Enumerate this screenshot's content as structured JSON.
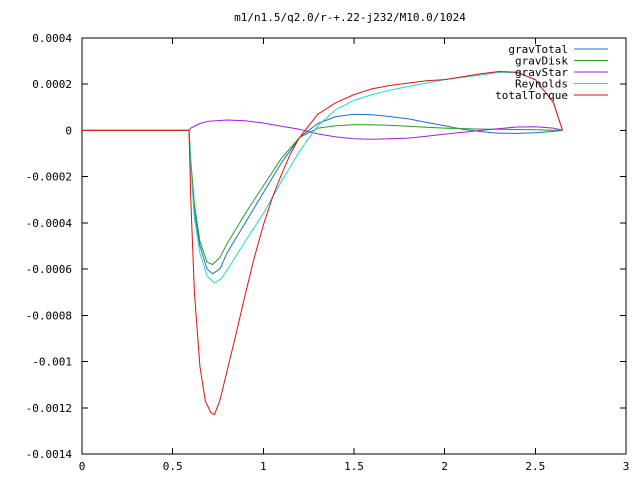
{
  "chart_data": {
    "type": "line",
    "title": "m1/n1.5/q2.0/r-+.22-j232/M10.0/1024",
    "xlabel": "",
    "ylabel": "",
    "xlim": [
      0,
      3
    ],
    "ylim": [
      -0.0014,
      0.0004
    ],
    "grid": false,
    "legend_position": "top-right",
    "x_ticks": [
      {
        "value": 0,
        "label": "0"
      },
      {
        "value": 0.5,
        "label": "0.5"
      },
      {
        "value": 1,
        "label": "1"
      },
      {
        "value": 1.5,
        "label": "1.5"
      },
      {
        "value": 2,
        "label": "2"
      },
      {
        "value": 2.5,
        "label": "2.5"
      },
      {
        "value": 3,
        "label": "3"
      }
    ],
    "y_ticks": [
      {
        "value": 0.0004,
        "label": "0.0004"
      },
      {
        "value": 0.0002,
        "label": "0.0002"
      },
      {
        "value": 0,
        "label": "0"
      },
      {
        "value": -0.0002,
        "label": "-0.0002"
      },
      {
        "value": -0.0004,
        "label": "-0.0004"
      },
      {
        "value": -0.0006,
        "label": "-0.0006"
      },
      {
        "value": -0.0008,
        "label": "-0.0008"
      },
      {
        "value": -0.001,
        "label": "-0.001"
      },
      {
        "value": -0.0012,
        "label": "-0.0012"
      },
      {
        "value": -0.0014,
        "label": "-0.0014"
      }
    ],
    "series": [
      {
        "name": "gravTotal",
        "color": "#1f6fd0",
        "points": [
          [
            0,
            0
          ],
          [
            0.59,
            0
          ],
          [
            0.6,
            -0.00015
          ],
          [
            0.62,
            -0.00035
          ],
          [
            0.65,
            -0.0005
          ],
          [
            0.69,
            -0.0006
          ],
          [
            0.72,
            -0.00062
          ],
          [
            0.76,
            -0.0006
          ],
          [
            0.8,
            -0.00053
          ],
          [
            0.9,
            -0.0004
          ],
          [
            1.0,
            -0.00027
          ],
          [
            1.1,
            -0.00014
          ],
          [
            1.2,
            -3e-05
          ],
          [
            1.3,
            3e-05
          ],
          [
            1.4,
            6e-05
          ],
          [
            1.5,
            7e-05
          ],
          [
            1.6,
            6.8e-05
          ],
          [
            1.7,
            6e-05
          ],
          [
            1.8,
            5e-05
          ],
          [
            1.9,
            3.5e-05
          ],
          [
            2.0,
            2e-05
          ],
          [
            2.1,
            5e-06
          ],
          [
            2.2,
            -5e-06
          ],
          [
            2.3,
            -1.2e-05
          ],
          [
            2.4,
            -1.3e-05
          ],
          [
            2.5,
            -1e-05
          ],
          [
            2.6,
            -4e-06
          ],
          [
            2.65,
            0
          ]
        ]
      },
      {
        "name": "gravDisk",
        "color": "#1ea01e",
        "points": [
          [
            0,
            0
          ],
          [
            0.59,
            0
          ],
          [
            0.6,
            -0.00013
          ],
          [
            0.62,
            -0.00032
          ],
          [
            0.65,
            -0.00048
          ],
          [
            0.69,
            -0.00057
          ],
          [
            0.72,
            -0.00058
          ],
          [
            0.76,
            -0.00055
          ],
          [
            0.8,
            -0.00049
          ],
          [
            0.9,
            -0.00036
          ],
          [
            1.0,
            -0.00024
          ],
          [
            1.1,
            -0.00012
          ],
          [
            1.2,
            -3e-05
          ],
          [
            1.3,
            1e-05
          ],
          [
            1.4,
            2e-05
          ],
          [
            1.5,
            2.5e-05
          ],
          [
            1.6,
            2.5e-05
          ],
          [
            1.7,
            2.2e-05
          ],
          [
            1.8,
            1.8e-05
          ],
          [
            1.9,
            1.4e-05
          ],
          [
            2.0,
            1e-05
          ],
          [
            2.1,
            8e-06
          ],
          [
            2.2,
            6e-06
          ],
          [
            2.3,
            5e-06
          ],
          [
            2.4,
            4e-06
          ],
          [
            2.5,
            3e-06
          ],
          [
            2.6,
            1e-06
          ],
          [
            2.65,
            0
          ]
        ]
      },
      {
        "name": "gravStar",
        "color": "#a020e0",
        "points": [
          [
            0,
            0
          ],
          [
            0.59,
            0
          ],
          [
            0.6,
            1e-05
          ],
          [
            0.65,
            3e-05
          ],
          [
            0.7,
            4e-05
          ],
          [
            0.8,
            4.5e-05
          ],
          [
            0.9,
            4.2e-05
          ],
          [
            1.0,
            3.2e-05
          ],
          [
            1.1,
            1.8e-05
          ],
          [
            1.2,
            5e-06
          ],
          [
            1.3,
            -1.5e-05
          ],
          [
            1.4,
            -2.8e-05
          ],
          [
            1.5,
            -3.6e-05
          ],
          [
            1.6,
            -3.8e-05
          ],
          [
            1.7,
            -3.6e-05
          ],
          [
            1.8,
            -3.3e-05
          ],
          [
            1.9,
            -2.5e-05
          ],
          [
            2.0,
            -1.6e-05
          ],
          [
            2.1,
            -8e-06
          ],
          [
            2.2,
            0
          ],
          [
            2.3,
            8e-06
          ],
          [
            2.4,
            1.5e-05
          ],
          [
            2.5,
            1.6e-05
          ],
          [
            2.6,
            1e-05
          ],
          [
            2.65,
            0
          ]
        ]
      },
      {
        "name": "Reynolds",
        "color": "#20d8d8",
        "points": [
          [
            0,
            0
          ],
          [
            0.59,
            0
          ],
          [
            0.6,
            -0.00016
          ],
          [
            0.62,
            -0.00038
          ],
          [
            0.65,
            -0.00053
          ],
          [
            0.69,
            -0.00063
          ],
          [
            0.73,
            -0.00066
          ],
          [
            0.77,
            -0.00064
          ],
          [
            0.82,
            -0.00058
          ],
          [
            0.9,
            -0.00048
          ],
          [
            1.0,
            -0.00036
          ],
          [
            1.1,
            -0.00022
          ],
          [
            1.2,
            -9e-05
          ],
          [
            1.3,
            2e-05
          ],
          [
            1.4,
            9e-05
          ],
          [
            1.5,
            0.00013
          ],
          [
            1.6,
            0.000155
          ],
          [
            1.7,
            0.000175
          ],
          [
            1.8,
            0.00019
          ],
          [
            1.9,
            0.000205
          ],
          [
            2.0,
            0.00022
          ],
          [
            2.1,
            0.00023
          ],
          [
            2.2,
            0.00024
          ],
          [
            2.3,
            0.000252
          ],
          [
            2.4,
            0.00025
          ],
          [
            2.5,
            0.00022
          ],
          [
            2.6,
            0.00012
          ],
          [
            2.65,
            0
          ]
        ]
      },
      {
        "name": "totalTorque",
        "color": "#e01010",
        "points": [
          [
            0,
            0
          ],
          [
            0.59,
            0
          ],
          [
            0.6,
            -0.0003
          ],
          [
            0.62,
            -0.0007
          ],
          [
            0.65,
            -0.00102
          ],
          [
            0.68,
            -0.00117
          ],
          [
            0.71,
            -0.00122
          ],
          [
            0.73,
            -0.00123
          ],
          [
            0.76,
            -0.00117
          ],
          [
            0.8,
            -0.00104
          ],
          [
            0.85,
            -0.00088
          ],
          [
            0.9,
            -0.00071
          ],
          [
            0.95,
            -0.00055
          ],
          [
            1.0,
            -0.00041
          ],
          [
            1.05,
            -0.00029
          ],
          [
            1.1,
            -0.00019
          ],
          [
            1.15,
            -0.0001
          ],
          [
            1.2,
            -3e-05
          ],
          [
            1.25,
            2e-05
          ],
          [
            1.3,
            7e-05
          ],
          [
            1.4,
            0.00012
          ],
          [
            1.5,
            0.000155
          ],
          [
            1.6,
            0.00018
          ],
          [
            1.7,
            0.000195
          ],
          [
            1.8,
            0.000205
          ],
          [
            1.9,
            0.000215
          ],
          [
            2.0,
            0.00022
          ],
          [
            2.1,
            0.000232
          ],
          [
            2.2,
            0.000245
          ],
          [
            2.3,
            0.000255
          ],
          [
            2.4,
            0.000252
          ],
          [
            2.5,
            0.00022
          ],
          [
            2.6,
            0.00012
          ],
          [
            2.65,
            0
          ]
        ]
      }
    ]
  }
}
